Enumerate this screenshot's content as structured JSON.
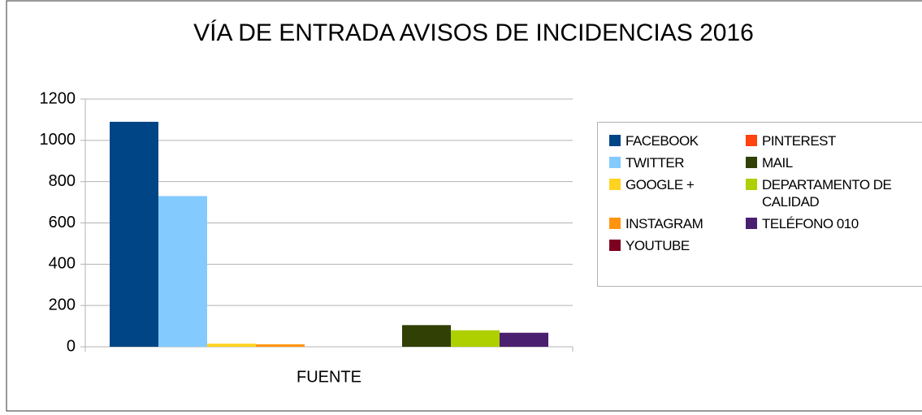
{
  "chart_data": {
    "type": "bar",
    "title": "VÍA DE ENTRADA AVISOS DE INCIDENCIAS 2016",
    "categories": [
      "FUENTE"
    ],
    "series": [
      {
        "name": "FACEBOOK",
        "color": "#004586",
        "values": [
          1090
        ]
      },
      {
        "name": "TWITTER",
        "color": "#83caff",
        "values": [
          730
        ]
      },
      {
        "name": "GOOGLE +",
        "color": "#ffd320",
        "values": [
          15
        ]
      },
      {
        "name": "INSTAGRAM",
        "color": "#ff950e",
        "values": [
          12
        ]
      },
      {
        "name": "YOUTUBE",
        "color": "#7e0021",
        "values": [
          0
        ]
      },
      {
        "name": "PINTEREST",
        "color": "#ff420e",
        "values": [
          0
        ]
      },
      {
        "name": "MAIL",
        "color": "#314004",
        "values": [
          105
        ]
      },
      {
        "name": "DEPARTAMENTO DE CALIDAD",
        "color": "#aecf00",
        "values": [
          80
        ]
      },
      {
        "name": "TELÉFONO 010",
        "color": "#4b1f6f",
        "values": [
          68
        ]
      }
    ],
    "ylim": [
      0,
      1200
    ],
    "yticks": [
      0,
      200,
      400,
      600,
      800,
      1000,
      1200
    ],
    "grid": true,
    "legend": "right"
  }
}
